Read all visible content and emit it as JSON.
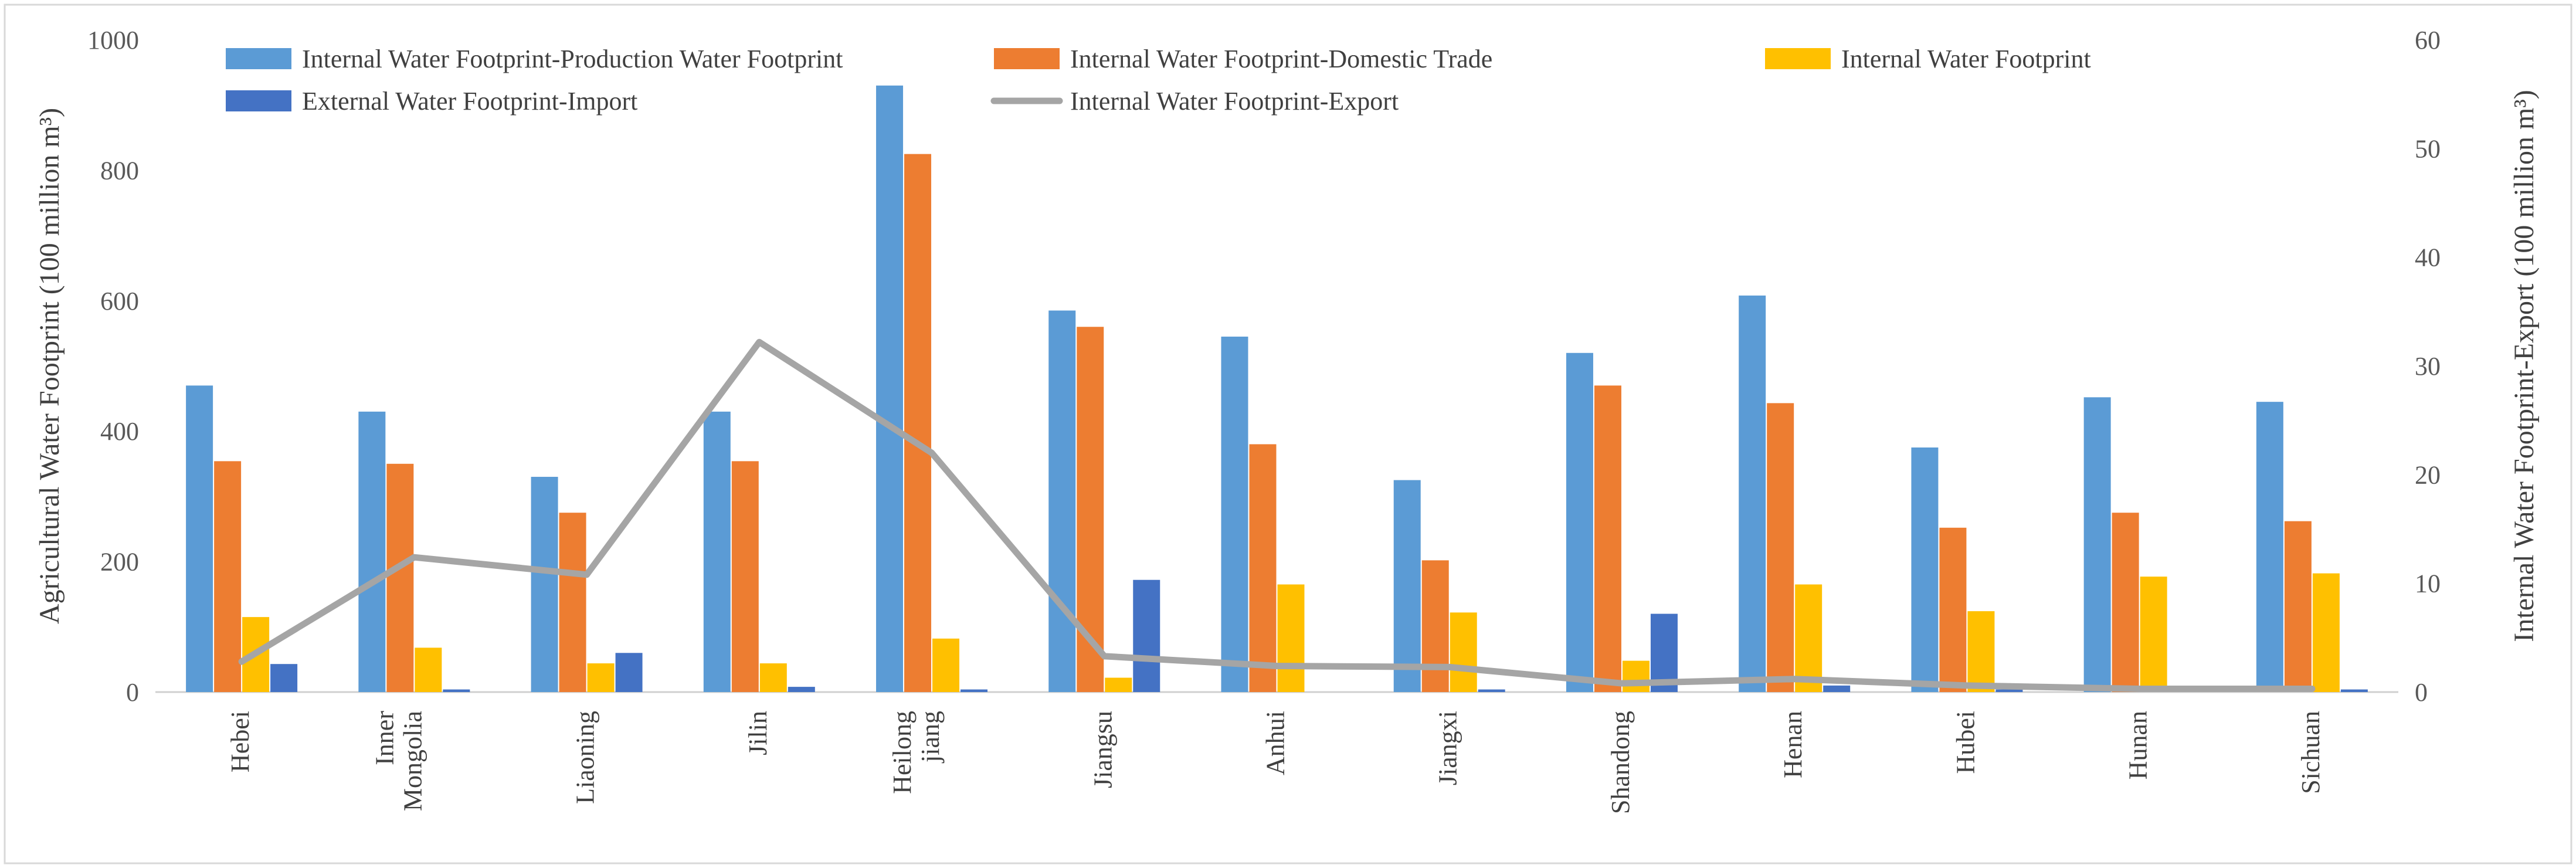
{
  "chart_data": {
    "type": "bar",
    "categories": [
      [
        "Hebei"
      ],
      [
        "Inner",
        "Mongolia"
      ],
      [
        "Liaoning"
      ],
      [
        "Jilin"
      ],
      [
        "Heilong",
        "jiang"
      ],
      [
        "Jiangsu"
      ],
      [
        "Anhui"
      ],
      [
        "Jiangxi"
      ],
      [
        "Shandong"
      ],
      [
        "Henan"
      ],
      [
        "Hubei"
      ],
      [
        "Hunan"
      ],
      [
        "Sichuan"
      ]
    ],
    "series": [
      {
        "name": "Internal Water Footprint-Production Water Footprint",
        "type": "bar",
        "axis": "left",
        "color": "#5B9BD5",
        "values": [
          470,
          430,
          330,
          430,
          930,
          585,
          545,
          325,
          520,
          608,
          375,
          452,
          445
        ]
      },
      {
        "name": "Internal Water Footprint-Domestic Trade",
        "type": "bar",
        "axis": "left",
        "color": "#ED7D31",
        "values": [
          354,
          350,
          275,
          354,
          825,
          560,
          380,
          202,
          470,
          443,
          252,
          275,
          262
        ]
      },
      {
        "name": "Internal Water Footprint",
        "type": "bar",
        "axis": "left",
        "color": "#FFC000",
        "values": [
          115,
          68,
          44,
          44,
          82,
          22,
          165,
          122,
          48,
          165,
          124,
          177,
          182
        ]
      },
      {
        "name": "External Water Footprint-Import",
        "type": "bar",
        "axis": "left",
        "color": "#4472C4",
        "values": [
          43,
          4,
          60,
          8,
          4,
          172,
          0,
          4,
          120,
          10,
          4,
          0,
          4
        ]
      },
      {
        "name": "Internal Water Footprint-Export",
        "type": "line",
        "axis": "right",
        "color": "#A5A5A5",
        "values": [
          2.8,
          12.4,
          10.8,
          32.2,
          22.0,
          3.3,
          2.4,
          2.3,
          0.8,
          1.2,
          0.6,
          0.3,
          0.3
        ]
      }
    ],
    "ylabel": "Agricultural Water Footprint (100 million m³)",
    "y2label": "Internal Water Footprint-Export (100 million m³)",
    "ylim": [
      0,
      1000
    ],
    "yticks": [
      0,
      200,
      400,
      600,
      800,
      1000
    ],
    "y2lim": [
      0,
      60
    ],
    "y2ticks": [
      0,
      10,
      20,
      30,
      40,
      50,
      60
    ],
    "legend_position": "top",
    "grid": false
  }
}
